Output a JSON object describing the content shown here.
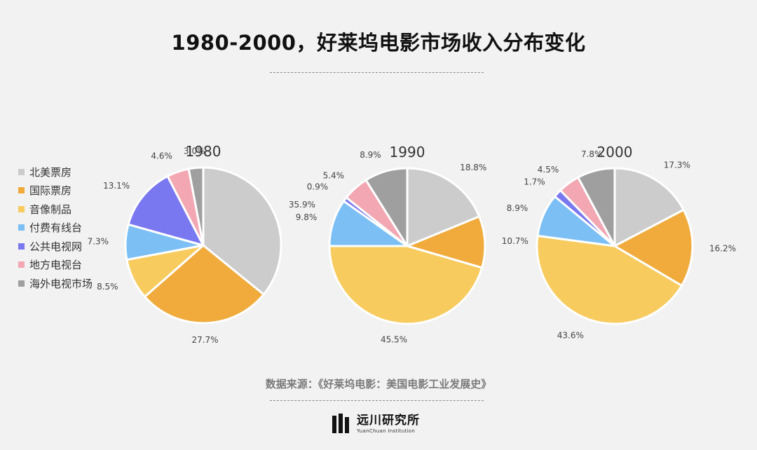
{
  "title": "1980-2000，好莱坞电影市场收入分布变化",
  "source": "数据来源：《好莱坞电影：美国电影工业发展史》",
  "logo": {
    "name_cn": "远川研究所",
    "name_en": "YuanChuan Institution"
  },
  "chart_data": {
    "type": "pie",
    "legend_position": "left",
    "series_names": [
      "北美票房",
      "国际票房",
      "音像制品",
      "付费有线台",
      "公共电视网",
      "地方电视台",
      "海外电视市场"
    ],
    "colors": [
      "#cccccc",
      "#f0ab3c",
      "#f7cb5e",
      "#7cbff5",
      "#7a78f0",
      "#f2a7b2",
      "#9f9f9f"
    ],
    "charts": [
      {
        "title": "1980",
        "values": [
          35.9,
          27.7,
          8.5,
          7.3,
          13.1,
          4.6,
          3.0
        ],
        "labels": [
          "35.9%",
          "27.7%",
          "8.5%",
          "7.3%",
          "13.1%",
          "4.6%",
          "3.0%"
        ]
      },
      {
        "title": "1990",
        "values": [
          18.8,
          10.7,
          45.5,
          9.8,
          0.9,
          5.4,
          8.9
        ],
        "labels": [
          "18.8%",
          "10.7%",
          "45.5%",
          "9.8%",
          "0.9%",
          "5.4%",
          "8.9%"
        ]
      },
      {
        "title": "2000",
        "values": [
          17.3,
          16.2,
          43.6,
          8.9,
          1.7,
          4.5,
          7.8
        ],
        "labels": [
          "17.3%",
          "16.2%",
          "43.6%",
          "8.9%",
          "1.7%",
          "4.5%",
          "7.8%"
        ]
      }
    ]
  }
}
